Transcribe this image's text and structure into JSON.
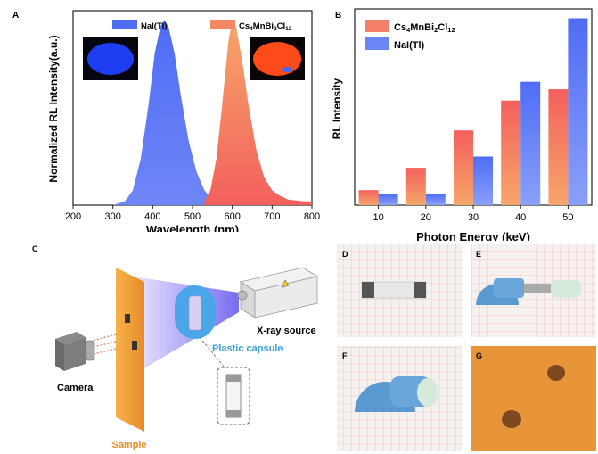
{
  "colors": {
    "nai_blue": "#4f6cf5",
    "cs_red": "#f3605c",
    "cs_orange": "#f7a66a",
    "sample_orange": "#f0a040",
    "capsule_blue": "#4aa6e8",
    "label_blue": "#3aa0e0",
    "label_orange": "#f08a2a"
  },
  "chart_data": [
    {
      "type": "area",
      "panel": "A",
      "xlabel": "Wavelength (nm)",
      "ylabel": "Normalized RL Intensity(a.u.)",
      "xlim": [
        200,
        800
      ],
      "ylim": [
        0,
        1.05
      ],
      "xticks": [
        "200",
        "300",
        "400",
        "500",
        "600",
        "700",
        "800"
      ],
      "legend": [
        "NaI(Tl)",
        "Cs4MnBi2Cl12"
      ],
      "series": [
        {
          "name": "NaI(Tl)",
          "x": [
            300,
            330,
            350,
            370,
            390,
            405,
            420,
            430,
            440,
            455,
            470,
            490,
            510,
            530,
            550,
            570,
            580
          ],
          "y": [
            0,
            0.02,
            0.08,
            0.25,
            0.55,
            0.82,
            0.97,
            1.0,
            0.96,
            0.82,
            0.6,
            0.35,
            0.18,
            0.08,
            0.03,
            0.01,
            0
          ]
        },
        {
          "name": "Cs4MnBi2Cl12",
          "x": [
            530,
            545,
            560,
            575,
            590,
            600,
            610,
            625,
            640,
            660,
            680,
            700,
            720,
            740,
            760,
            780,
            800
          ],
          "y": [
            0.02,
            0.08,
            0.25,
            0.55,
            0.88,
            1.0,
            0.96,
            0.78,
            0.55,
            0.3,
            0.15,
            0.08,
            0.05,
            0.03,
            0.025,
            0.02,
            0.02
          ]
        }
      ]
    },
    {
      "type": "bar",
      "panel": "B",
      "xlabel": "Photon Energy (keV)",
      "ylabel": "RL Intensity",
      "categories": [
        "10",
        "20",
        "30",
        "40",
        "50"
      ],
      "legend": [
        "Cs4MnBi2Cl12",
        "NaI(Tl)"
      ],
      "series": [
        {
          "name": "Cs4MnBi2Cl12",
          "values": [
            0.08,
            0.2,
            0.4,
            0.56,
            0.62
          ]
        },
        {
          "name": "NaI(Tl)",
          "values": [
            0.06,
            0.06,
            0.26,
            0.66,
            1.0
          ]
        }
      ],
      "ylim": [
        0,
        1.05
      ]
    }
  ],
  "panels": {
    "a": "A",
    "b": "B",
    "c": "C",
    "d": "D",
    "e": "E",
    "f": "F",
    "g": "G"
  },
  "legend_a": {
    "nai": "NaI(Tl)",
    "cs_main": "Cs",
    "cs_sub1": "4",
    "cs_mid1": "MnBi",
    "cs_sub2": "2",
    "cs_mid2": "Cl",
    "cs_sub3": "12"
  },
  "legend_b": {
    "cs_main": "Cs",
    "cs_sub1": "4",
    "cs_mid1": "MnBi",
    "cs_sub2": "2",
    "cs_mid2": "Cl",
    "cs_sub3": "12",
    "nai": "NaI(Tl)"
  },
  "schematic": {
    "xray": "X-ray source",
    "capsule": "Plastic capsule",
    "camera": "Camera",
    "sample": "Sample"
  }
}
